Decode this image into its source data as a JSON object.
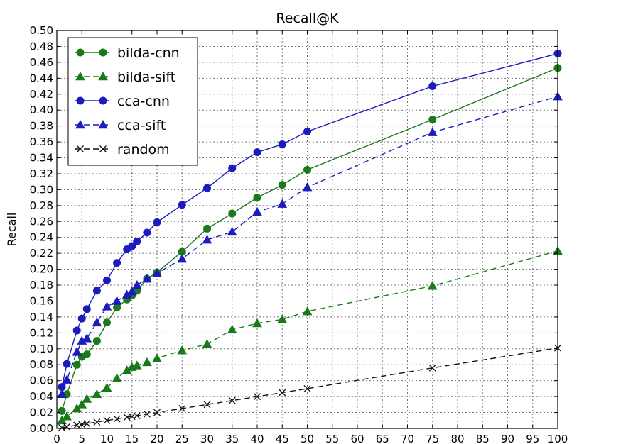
{
  "chart_data": {
    "type": "line",
    "title": "Recall@K",
    "xlabel": "",
    "ylabel": "Recall",
    "xlim": [
      0,
      100
    ],
    "ylim": [
      0,
      0.5
    ],
    "grid": true,
    "legend_position": "top-left",
    "x_ticks": [
      "0",
      "5",
      "10",
      "15",
      "20",
      "25",
      "30",
      "35",
      "40",
      "45",
      "50",
      "55",
      "60",
      "65",
      "70",
      "75",
      "80",
      "85",
      "90",
      "95",
      "100"
    ],
    "y_ticks": [
      "0.00",
      "0.02",
      "0.04",
      "0.06",
      "0.08",
      "0.10",
      "0.12",
      "0.14",
      "0.16",
      "0.18",
      "0.20",
      "0.22",
      "0.24",
      "0.26",
      "0.28",
      "0.30",
      "0.32",
      "0.34",
      "0.36",
      "0.38",
      "0.40",
      "0.42",
      "0.44",
      "0.46",
      "0.48",
      "0.50"
    ],
    "series": [
      {
        "name": "bilda-cnn",
        "color": "#1a7a1a",
        "line_style": "solid",
        "marker": "circle",
        "x": [
          1,
          2,
          4,
          5,
          6,
          8,
          10,
          12,
          14,
          15,
          16,
          18,
          20,
          25,
          30,
          35,
          40,
          45,
          50,
          75,
          100
        ],
        "y": [
          0.022,
          0.043,
          0.08,
          0.09,
          0.093,
          0.11,
          0.133,
          0.152,
          0.162,
          0.167,
          0.173,
          0.188,
          0.196,
          0.222,
          0.251,
          0.27,
          0.29,
          0.306,
          0.325,
          0.388,
          0.453
        ]
      },
      {
        "name": "bilda-sift",
        "color": "#1a7a1a",
        "line_style": "dashed",
        "marker": "triangle",
        "x": [
          1,
          2,
          4,
          5,
          6,
          8,
          10,
          12,
          14,
          15,
          16,
          18,
          20,
          25,
          30,
          35,
          40,
          45,
          50,
          75,
          100
        ],
        "y": [
          0.01,
          0.015,
          0.025,
          0.03,
          0.037,
          0.043,
          0.051,
          0.063,
          0.073,
          0.077,
          0.079,
          0.083,
          0.088,
          0.098,
          0.106,
          0.124,
          0.132,
          0.137,
          0.147,
          0.179,
          0.223
        ]
      },
      {
        "name": "cca-cnn",
        "color": "#1c1cbe",
        "line_style": "solid",
        "marker": "circle",
        "x": [
          1,
          2,
          4,
          5,
          6,
          8,
          10,
          12,
          14,
          15,
          16,
          18,
          20,
          25,
          30,
          35,
          40,
          45,
          50,
          75,
          100
        ],
        "y": [
          0.052,
          0.081,
          0.123,
          0.138,
          0.15,
          0.173,
          0.186,
          0.208,
          0.225,
          0.229,
          0.235,
          0.246,
          0.259,
          0.281,
          0.302,
          0.327,
          0.347,
          0.357,
          0.373,
          0.43,
          0.471
        ]
      },
      {
        "name": "cca-sift",
        "color": "#1c1cbe",
        "line_style": "dashed",
        "marker": "triangle",
        "x": [
          1,
          2,
          4,
          5,
          6,
          8,
          10,
          12,
          14,
          15,
          16,
          18,
          20,
          25,
          30,
          35,
          40,
          45,
          50,
          75,
          100
        ],
        "y": [
          0.043,
          0.061,
          0.096,
          0.11,
          0.113,
          0.133,
          0.153,
          0.16,
          0.168,
          0.172,
          0.18,
          0.188,
          0.195,
          0.213,
          0.237,
          0.247,
          0.272,
          0.282,
          0.303,
          0.372,
          0.417
        ]
      },
      {
        "name": "random",
        "color": "#111111",
        "line_style": "dashed",
        "marker": "x",
        "x": [
          1,
          2,
          4,
          5,
          6,
          8,
          10,
          12,
          14,
          15,
          16,
          18,
          20,
          25,
          30,
          35,
          40,
          45,
          50,
          75,
          100
        ],
        "y": [
          0.001,
          0.002,
          0.004,
          0.005,
          0.006,
          0.008,
          0.01,
          0.012,
          0.014,
          0.015,
          0.016,
          0.018,
          0.02,
          0.025,
          0.03,
          0.035,
          0.04,
          0.045,
          0.05,
          0.076,
          0.101
        ]
      }
    ]
  }
}
